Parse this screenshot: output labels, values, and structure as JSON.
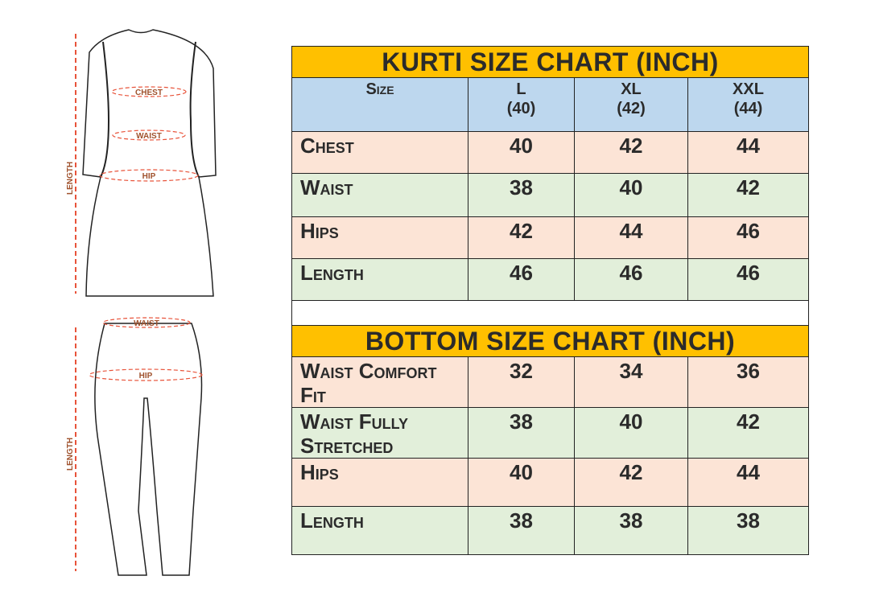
{
  "figures": {
    "kurti": {
      "labels": {
        "chest": "CHEST",
        "waist": "WAIST",
        "hip": "HIP",
        "length": "LENGTH"
      }
    },
    "bottom": {
      "labels": {
        "waist": "WAIST",
        "hip": "HIP",
        "length": "LENGTH"
      }
    },
    "measure_color": "#E8533A",
    "label_color": "#A0522D"
  },
  "kurti_chart": {
    "title": "KURTI SIZE CHART (INCH)",
    "header": {
      "label": "Size",
      "sizes": [
        {
          "name": "L",
          "number": "(40)"
        },
        {
          "name": "XL",
          "number": "(42)"
        },
        {
          "name": "XXL",
          "number": "(44)"
        }
      ]
    },
    "rows": [
      {
        "label": "Chest",
        "values": [
          "40",
          "42",
          "44"
        ]
      },
      {
        "label": "Waist",
        "values": [
          "38",
          "40",
          "42"
        ]
      },
      {
        "label": "Hips",
        "values": [
          "42",
          "44",
          "46"
        ]
      },
      {
        "label": "Length",
        "values": [
          "46",
          "46",
          "46"
        ]
      }
    ]
  },
  "bottom_chart": {
    "title": "BOTTOM SIZE CHART (INCH)",
    "rows": [
      {
        "label": "Waist Comfort Fit",
        "values": [
          "32",
          "34",
          "36"
        ]
      },
      {
        "label": "Waist Fully Stretched",
        "values": [
          "38",
          "40",
          "42"
        ]
      },
      {
        "label": "Hips",
        "values": [
          "40",
          "42",
          "44"
        ]
      },
      {
        "label": "Length",
        "values": [
          "38",
          "38",
          "38"
        ]
      }
    ]
  },
  "colors": {
    "title": "#FFC000",
    "header": "#BDD7EE",
    "row_odd": "#FCE4D6",
    "row_even": "#E2EFDA"
  }
}
